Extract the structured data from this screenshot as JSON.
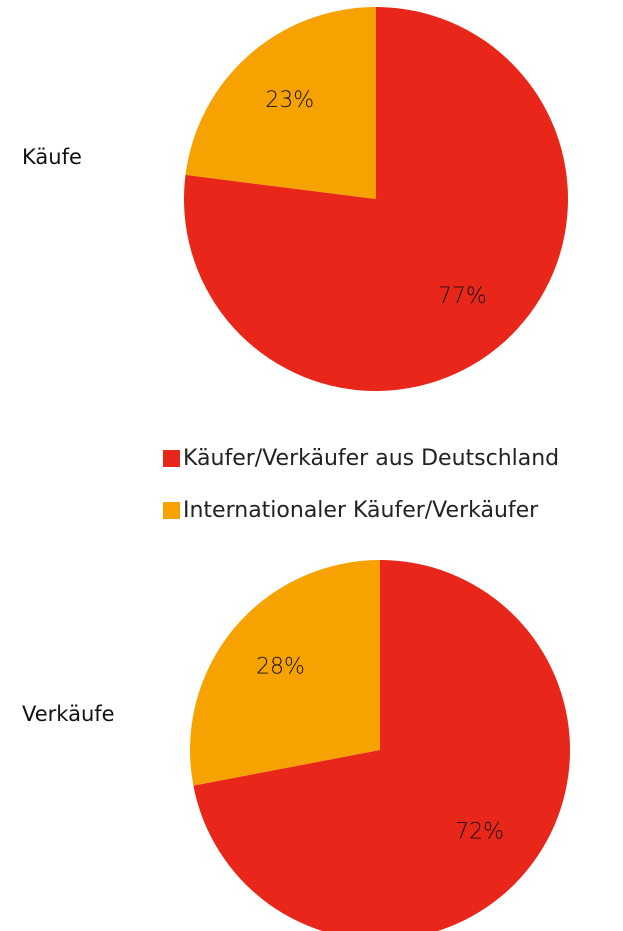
{
  "chart_data": [
    {
      "type": "pie",
      "title": "Käufe",
      "values": [
        77,
        23
      ],
      "value_labels": [
        "77%",
        "23%"
      ]
    },
    {
      "type": "pie",
      "title": "Verkäufe",
      "values": [
        72,
        28
      ],
      "value_labels": [
        "72%",
        "28%"
      ]
    }
  ],
  "legend": {
    "categories": [
      "Käufer/Verkäufer aus Deutschland",
      "Internationaler Käufer/Verkäufer"
    ],
    "colors": [
      "#e9261a",
      "#f6a200"
    ]
  }
}
